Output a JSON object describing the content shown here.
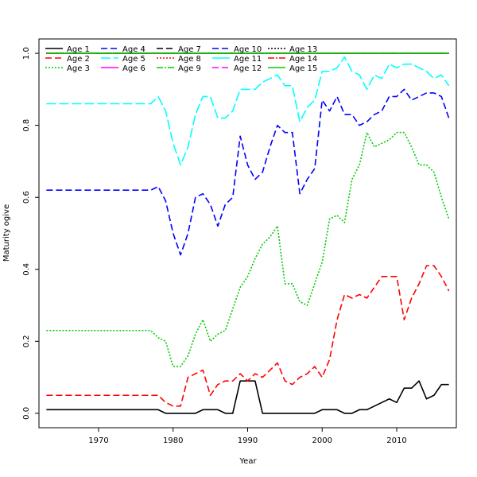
{
  "chart_data": {
    "type": "line",
    "title": "",
    "xlabel": "Year",
    "ylabel": "Maturity ogive",
    "xlim": [
      1962,
      2018
    ],
    "ylim": [
      -0.04,
      1.04
    ],
    "xticks": [
      1970,
      1980,
      1990,
      2000,
      2010
    ],
    "yticks": [
      0.0,
      0.2,
      0.4,
      0.6,
      0.8,
      1.0
    ],
    "xtick_labels": [
      "1970",
      "1980",
      "1990",
      "2000",
      "2010"
    ],
    "ytick_labels": [
      "0.0",
      "0.2",
      "0.4",
      "0.6",
      "0.8",
      "1.0"
    ],
    "grid": false,
    "legend_position": "top-left",
    "x": [
      1963,
      1964,
      1965,
      1966,
      1967,
      1968,
      1969,
      1970,
      1971,
      1972,
      1973,
      1974,
      1975,
      1976,
      1977,
      1978,
      1979,
      1980,
      1981,
      1982,
      1983,
      1984,
      1985,
      1986,
      1987,
      1988,
      1989,
      1990,
      1991,
      1992,
      1993,
      1994,
      1995,
      1996,
      1997,
      1998,
      1999,
      2000,
      2001,
      2002,
      2003,
      2004,
      2005,
      2006,
      2007,
      2008,
      2009,
      2010,
      2011,
      2012,
      2013,
      2014,
      2015,
      2016,
      2017
    ],
    "series": [
      {
        "name": "Age 1",
        "color": "#000000",
        "dash": "",
        "values": [
          0.01,
          0.01,
          0.01,
          0.01,
          0.01,
          0.01,
          0.01,
          0.01,
          0.01,
          0.01,
          0.01,
          0.01,
          0.01,
          0.01,
          0.01,
          0.01,
          0.0,
          0.0,
          0.0,
          0.0,
          0.0,
          0.01,
          0.01,
          0.01,
          0.0,
          0.0,
          0.09,
          0.09,
          0.09,
          0.0,
          0.0,
          0.0,
          0.0,
          0.0,
          0.0,
          0.0,
          0.0,
          0.01,
          0.01,
          0.01,
          0.0,
          0.0,
          0.01,
          0.01,
          0.02,
          0.03,
          0.04,
          0.03,
          0.07,
          0.07,
          0.09,
          0.04,
          0.05,
          0.08,
          0.08
        ]
      },
      {
        "name": "Age 2",
        "color": "#ff0000",
        "dash": "8,4",
        "values": [
          0.05,
          0.05,
          0.05,
          0.05,
          0.05,
          0.05,
          0.05,
          0.05,
          0.05,
          0.05,
          0.05,
          0.05,
          0.05,
          0.05,
          0.05,
          0.05,
          0.03,
          0.02,
          0.02,
          0.1,
          0.11,
          0.12,
          0.05,
          0.08,
          0.09,
          0.09,
          0.11,
          0.09,
          0.11,
          0.1,
          0.12,
          0.14,
          0.09,
          0.08,
          0.1,
          0.11,
          0.13,
          0.1,
          0.15,
          0.26,
          0.33,
          0.32,
          0.33,
          0.32,
          0.35,
          0.38,
          0.38,
          0.38,
          0.26,
          0.32,
          0.36,
          0.41,
          0.41,
          0.38,
          0.34
        ]
      },
      {
        "name": "Age 3",
        "color": "#00cd00",
        "dash": "2,2",
        "values": [
          0.23,
          0.23,
          0.23,
          0.23,
          0.23,
          0.23,
          0.23,
          0.23,
          0.23,
          0.23,
          0.23,
          0.23,
          0.23,
          0.23,
          0.23,
          0.21,
          0.2,
          0.13,
          0.13,
          0.16,
          0.22,
          0.26,
          0.2,
          0.22,
          0.23,
          0.29,
          0.35,
          0.38,
          0.43,
          0.47,
          0.49,
          0.52,
          0.36,
          0.36,
          0.31,
          0.3,
          0.36,
          0.42,
          0.54,
          0.55,
          0.53,
          0.65,
          0.69,
          0.78,
          0.74,
          0.75,
          0.76,
          0.78,
          0.78,
          0.74,
          0.69,
          0.69,
          0.67,
          0.6,
          0.54
        ]
      },
      {
        "name": "Age 4",
        "color": "#0000ff",
        "dash": "8,4",
        "values": [
          0.62,
          0.62,
          0.62,
          0.62,
          0.62,
          0.62,
          0.62,
          0.62,
          0.62,
          0.62,
          0.62,
          0.62,
          0.62,
          0.62,
          0.62,
          0.63,
          0.59,
          0.5,
          0.44,
          0.5,
          0.6,
          0.61,
          0.58,
          0.52,
          0.58,
          0.6,
          0.77,
          0.69,
          0.65,
          0.67,
          0.74,
          0.8,
          0.78,
          0.78,
          0.61,
          0.65,
          0.68,
          0.87,
          0.84,
          0.88,
          0.83,
          0.83,
          0.8,
          0.81,
          0.83,
          0.84,
          0.88,
          0.88,
          0.9,
          0.87,
          0.88,
          0.89,
          0.89,
          0.88,
          0.82
        ]
      },
      {
        "name": "Age 5",
        "color": "#00ffff",
        "dash": "12,4",
        "values": [
          0.86,
          0.86,
          0.86,
          0.86,
          0.86,
          0.86,
          0.86,
          0.86,
          0.86,
          0.86,
          0.86,
          0.86,
          0.86,
          0.86,
          0.86,
          0.88,
          0.84,
          0.75,
          0.69,
          0.74,
          0.83,
          0.88,
          0.88,
          0.82,
          0.82,
          0.84,
          0.9,
          0.9,
          0.9,
          0.92,
          0.93,
          0.94,
          0.91,
          0.91,
          0.81,
          0.85,
          0.87,
          0.95,
          0.95,
          0.96,
          0.99,
          0.95,
          0.94,
          0.9,
          0.94,
          0.93,
          0.97,
          0.96,
          0.97,
          0.97,
          0.96,
          0.95,
          0.93,
          0.94,
          0.91
        ]
      },
      {
        "name": "Age 6",
        "color": "#ff00ff",
        "dash": "",
        "values": [
          1.0,
          1.0,
          1.0,
          1.0,
          1.0,
          1.0,
          1.0,
          1.0,
          1.0,
          1.0,
          1.0,
          1.0,
          1.0,
          1.0,
          1.0,
          1.0,
          1.0,
          1.0,
          1.0,
          1.0,
          1.0,
          1.0,
          1.0,
          1.0,
          1.0,
          1.0,
          1.0,
          1.0,
          1.0,
          1.0,
          1.0,
          1.0,
          1.0,
          1.0,
          1.0,
          1.0,
          1.0,
          1.0,
          1.0,
          1.0,
          1.0,
          1.0,
          1.0,
          1.0,
          1.0,
          1.0,
          1.0,
          1.0,
          1.0,
          1.0,
          1.0,
          1.0,
          1.0,
          1.0,
          1.0
        ]
      },
      {
        "name": "Age 7",
        "color": "#000000",
        "dash": "8,4",
        "values": [
          1.0,
          1.0,
          1.0,
          1.0,
          1.0,
          1.0,
          1.0,
          1.0,
          1.0,
          1.0,
          1.0,
          1.0,
          1.0,
          1.0,
          1.0,
          1.0,
          1.0,
          1.0,
          1.0,
          1.0,
          1.0,
          1.0,
          1.0,
          1.0,
          1.0,
          1.0,
          1.0,
          1.0,
          1.0,
          1.0,
          1.0,
          1.0,
          1.0,
          1.0,
          1.0,
          1.0,
          1.0,
          1.0,
          1.0,
          1.0,
          1.0,
          1.0,
          1.0,
          1.0,
          1.0,
          1.0,
          1.0,
          1.0,
          1.0,
          1.0,
          1.0,
          1.0,
          1.0,
          1.0,
          1.0
        ]
      },
      {
        "name": "Age 8",
        "color": "#ff0000",
        "dash": "2,2",
        "values": [
          1.0,
          1.0,
          1.0,
          1.0,
          1.0,
          1.0,
          1.0,
          1.0,
          1.0,
          1.0,
          1.0,
          1.0,
          1.0,
          1.0,
          1.0,
          1.0,
          1.0,
          1.0,
          1.0,
          1.0,
          1.0,
          1.0,
          1.0,
          1.0,
          1.0,
          1.0,
          1.0,
          1.0,
          1.0,
          1.0,
          1.0,
          1.0,
          1.0,
          1.0,
          1.0,
          1.0,
          1.0,
          1.0,
          1.0,
          1.0,
          1.0,
          1.0,
          1.0,
          1.0,
          1.0,
          1.0,
          1.0,
          1.0,
          1.0,
          1.0,
          1.0,
          1.0,
          1.0,
          1.0,
          1.0
        ]
      },
      {
        "name": "Age 9",
        "color": "#00cd00",
        "dash": "8,2,2,2",
        "values": [
          1.0,
          1.0,
          1.0,
          1.0,
          1.0,
          1.0,
          1.0,
          1.0,
          1.0,
          1.0,
          1.0,
          1.0,
          1.0,
          1.0,
          1.0,
          1.0,
          1.0,
          1.0,
          1.0,
          1.0,
          1.0,
          1.0,
          1.0,
          1.0,
          1.0,
          1.0,
          1.0,
          1.0,
          1.0,
          1.0,
          1.0,
          1.0,
          1.0,
          1.0,
          1.0,
          1.0,
          1.0,
          1.0,
          1.0,
          1.0,
          1.0,
          1.0,
          1.0,
          1.0,
          1.0,
          1.0,
          1.0,
          1.0,
          1.0,
          1.0,
          1.0,
          1.0,
          1.0,
          1.0,
          1.0
        ]
      },
      {
        "name": "Age 10",
        "color": "#0000ff",
        "dash": "8,4",
        "values": [
          1.0,
          1.0,
          1.0,
          1.0,
          1.0,
          1.0,
          1.0,
          1.0,
          1.0,
          1.0,
          1.0,
          1.0,
          1.0,
          1.0,
          1.0,
          1.0,
          1.0,
          1.0,
          1.0,
          1.0,
          1.0,
          1.0,
          1.0,
          1.0,
          1.0,
          1.0,
          1.0,
          1.0,
          1.0,
          1.0,
          1.0,
          1.0,
          1.0,
          1.0,
          1.0,
          1.0,
          1.0,
          1.0,
          1.0,
          1.0,
          1.0,
          1.0,
          1.0,
          1.0,
          1.0,
          1.0,
          1.0,
          1.0,
          1.0,
          1.0,
          1.0,
          1.0,
          1.0,
          1.0,
          1.0
        ]
      },
      {
        "name": "Age 11",
        "color": "#00ffff",
        "dash": "",
        "values": [
          1.0,
          1.0,
          1.0,
          1.0,
          1.0,
          1.0,
          1.0,
          1.0,
          1.0,
          1.0,
          1.0,
          1.0,
          1.0,
          1.0,
          1.0,
          1.0,
          1.0,
          1.0,
          1.0,
          1.0,
          1.0,
          1.0,
          1.0,
          1.0,
          1.0,
          1.0,
          1.0,
          1.0,
          1.0,
          1.0,
          1.0,
          1.0,
          1.0,
          1.0,
          1.0,
          1.0,
          1.0,
          1.0,
          1.0,
          1.0,
          1.0,
          1.0,
          1.0,
          1.0,
          1.0,
          1.0,
          1.0,
          1.0,
          1.0,
          1.0,
          1.0,
          1.0,
          1.0,
          1.0,
          1.0
        ]
      },
      {
        "name": "Age 12",
        "color": "#ff00ff",
        "dash": "8,4",
        "values": [
          1.0,
          1.0,
          1.0,
          1.0,
          1.0,
          1.0,
          1.0,
          1.0,
          1.0,
          1.0,
          1.0,
          1.0,
          1.0,
          1.0,
          1.0,
          1.0,
          1.0,
          1.0,
          1.0,
          1.0,
          1.0,
          1.0,
          1.0,
          1.0,
          1.0,
          1.0,
          1.0,
          1.0,
          1.0,
          1.0,
          1.0,
          1.0,
          1.0,
          1.0,
          1.0,
          1.0,
          1.0,
          1.0,
          1.0,
          1.0,
          1.0,
          1.0,
          1.0,
          1.0,
          1.0,
          1.0,
          1.0,
          1.0,
          1.0,
          1.0,
          1.0,
          1.0,
          1.0,
          1.0,
          1.0
        ]
      },
      {
        "name": "Age 13",
        "color": "#000000",
        "dash": "2,2",
        "values": [
          1.0,
          1.0,
          1.0,
          1.0,
          1.0,
          1.0,
          1.0,
          1.0,
          1.0,
          1.0,
          1.0,
          1.0,
          1.0,
          1.0,
          1.0,
          1.0,
          1.0,
          1.0,
          1.0,
          1.0,
          1.0,
          1.0,
          1.0,
          1.0,
          1.0,
          1.0,
          1.0,
          1.0,
          1.0,
          1.0,
          1.0,
          1.0,
          1.0,
          1.0,
          1.0,
          1.0,
          1.0,
          1.0,
          1.0,
          1.0,
          1.0,
          1.0,
          1.0,
          1.0,
          1.0,
          1.0,
          1.0,
          1.0,
          1.0,
          1.0,
          1.0,
          1.0,
          1.0,
          1.0,
          1.0
        ]
      },
      {
        "name": "Age 14",
        "color": "#ff0000",
        "dash": "8,2,2,2",
        "values": [
          1.0,
          1.0,
          1.0,
          1.0,
          1.0,
          1.0,
          1.0,
          1.0,
          1.0,
          1.0,
          1.0,
          1.0,
          1.0,
          1.0,
          1.0,
          1.0,
          1.0,
          1.0,
          1.0,
          1.0,
          1.0,
          1.0,
          1.0,
          1.0,
          1.0,
          1.0,
          1.0,
          1.0,
          1.0,
          1.0,
          1.0,
          1.0,
          1.0,
          1.0,
          1.0,
          1.0,
          1.0,
          1.0,
          1.0,
          1.0,
          1.0,
          1.0,
          1.0,
          1.0,
          1.0,
          1.0,
          1.0,
          1.0,
          1.0,
          1.0,
          1.0,
          1.0,
          1.0,
          1.0,
          1.0
        ]
      },
      {
        "name": "Age 15",
        "color": "#00cd00",
        "dash": "",
        "values": [
          1.0,
          1.0,
          1.0,
          1.0,
          1.0,
          1.0,
          1.0,
          1.0,
          1.0,
          1.0,
          1.0,
          1.0,
          1.0,
          1.0,
          1.0,
          1.0,
          1.0,
          1.0,
          1.0,
          1.0,
          1.0,
          1.0,
          1.0,
          1.0,
          1.0,
          1.0,
          1.0,
          1.0,
          1.0,
          1.0,
          1.0,
          1.0,
          1.0,
          1.0,
          1.0,
          1.0,
          1.0,
          1.0,
          1.0,
          1.0,
          1.0,
          1.0,
          1.0,
          1.0,
          1.0,
          1.0,
          1.0,
          1.0,
          1.0,
          1.0,
          1.0,
          1.0,
          1.0,
          1.0,
          1.0
        ]
      }
    ]
  }
}
